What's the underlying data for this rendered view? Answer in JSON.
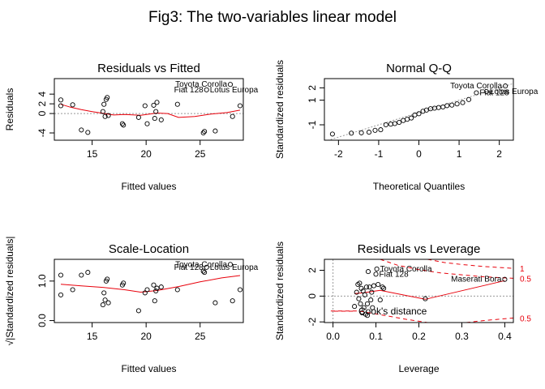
{
  "figure": {
    "title": "Fig3: The two-variables linear model"
  },
  "chart_data": [
    {
      "type": "scatter",
      "title": "Residuals vs Fitted",
      "xlabel": "Fitted values",
      "ylabel": "Residuals",
      "xlim": [
        11.5,
        29
      ],
      "ylim": [
        -5.5,
        7.2
      ],
      "xticks": [
        15,
        20,
        25
      ],
      "yticks": [
        -4,
        0,
        2,
        4
      ],
      "reference_line": 0,
      "points": [
        {
          "x": 12.1,
          "y": 2.8
        },
        {
          "x": 12.1,
          "y": 1.6
        },
        {
          "x": 13.2,
          "y": 1.8
        },
        {
          "x": 14.0,
          "y": -3.4
        },
        {
          "x": 14.6,
          "y": -3.9
        },
        {
          "x": 16.0,
          "y": 0.4
        },
        {
          "x": 16.1,
          "y": 1.9
        },
        {
          "x": 16.2,
          "y": -0.6
        },
        {
          "x": 16.3,
          "y": 2.9
        },
        {
          "x": 16.4,
          "y": 3.3
        },
        {
          "x": 16.5,
          "y": -0.4
        },
        {
          "x": 17.8,
          "y": -2.1
        },
        {
          "x": 17.9,
          "y": -2.4
        },
        {
          "x": 19.3,
          "y": -0.8
        },
        {
          "x": 19.9,
          "y": 1.6
        },
        {
          "x": 20.1,
          "y": -2.1
        },
        {
          "x": 20.7,
          "y": 1.7
        },
        {
          "x": 20.8,
          "y": -1.0
        },
        {
          "x": 20.9,
          "y": 0.4
        },
        {
          "x": 21.0,
          "y": 2.3
        },
        {
          "x": 21.4,
          "y": -1.3
        },
        {
          "x": 22.9,
          "y": 1.9
        },
        {
          "x": 25.3,
          "y": -4.0
        },
        {
          "x": 25.4,
          "y": -3.7
        },
        {
          "x": 25.6,
          "y": 4.9
        },
        {
          "x": 26.4,
          "y": -3.6
        },
        {
          "x": 27.8,
          "y": 6.0
        },
        {
          "x": 28.0,
          "y": -0.6
        },
        {
          "x": 28.7,
          "y": 1.6
        }
      ],
      "smoother": [
        {
          "x": 12.1,
          "y": 1.9
        },
        {
          "x": 13,
          "y": 1.3
        },
        {
          "x": 14,
          "y": 0.8
        },
        {
          "x": 15,
          "y": 0.4
        },
        {
          "x": 16,
          "y": 0.05
        },
        {
          "x": 17,
          "y": -0.3
        },
        {
          "x": 18,
          "y": -0.2
        },
        {
          "x": 19.5,
          "y": -0.35
        },
        {
          "x": 21,
          "y": 0.1
        },
        {
          "x": 22,
          "y": 0.0
        },
        {
          "x": 23,
          "y": -0.8
        },
        {
          "x": 24.5,
          "y": -0.6
        },
        {
          "x": 26,
          "y": -0.1
        },
        {
          "x": 27.5,
          "y": 0.2
        },
        {
          "x": 28.7,
          "y": 0.7
        }
      ],
      "labels": [
        {
          "text": "Toyota Corolla",
          "x": 27.8,
          "y": 6.0,
          "align": "end"
        },
        {
          "text": "Lotus Europa",
          "x": 25.6,
          "y": 4.9,
          "align": "start"
        },
        {
          "text": "Fiat 128",
          "x": 25.6,
          "y": 4.9,
          "align": "end"
        }
      ]
    },
    {
      "type": "scatter",
      "title": "Normal Q-Q",
      "xlabel": "Theoretical Quantiles",
      "ylabel": "Standardized residuals",
      "xlim": [
        -2.35,
        2.35
      ],
      "ylim": [
        -2.25,
        2.75
      ],
      "xticks": [
        -2,
        -1,
        0,
        1,
        2
      ],
      "yticks": [
        -1,
        1,
        2
      ],
      "reference_line": "diagonal",
      "points": [
        {
          "x": -2.15,
          "y": -1.75
        },
        {
          "x": -1.68,
          "y": -1.68
        },
        {
          "x": -1.43,
          "y": -1.65
        },
        {
          "x": -1.24,
          "y": -1.6
        },
        {
          "x": -1.09,
          "y": -1.45
        },
        {
          "x": -0.95,
          "y": -1.4
        },
        {
          "x": -0.82,
          "y": -1.0
        },
        {
          "x": -0.7,
          "y": -0.95
        },
        {
          "x": -0.6,
          "y": -0.9
        },
        {
          "x": -0.49,
          "y": -0.8
        },
        {
          "x": -0.39,
          "y": -0.65
        },
        {
          "x": -0.29,
          "y": -0.55
        },
        {
          "x": -0.19,
          "y": -0.45
        },
        {
          "x": -0.1,
          "y": -0.2
        },
        {
          "x": 0.0,
          "y": -0.1
        },
        {
          "x": 0.1,
          "y": 0.1
        },
        {
          "x": 0.19,
          "y": 0.2
        },
        {
          "x": 0.29,
          "y": 0.3
        },
        {
          "x": 0.39,
          "y": 0.35
        },
        {
          "x": 0.49,
          "y": 0.4
        },
        {
          "x": 0.6,
          "y": 0.45
        },
        {
          "x": 0.7,
          "y": 0.55
        },
        {
          "x": 0.82,
          "y": 0.6
        },
        {
          "x": 0.95,
          "y": 0.7
        },
        {
          "x": 1.09,
          "y": 0.8
        },
        {
          "x": 1.24,
          "y": 1.05
        },
        {
          "x": 1.43,
          "y": 1.6
        },
        {
          "x": 1.68,
          "y": 1.7
        },
        {
          "x": 2.15,
          "y": 2.15
        }
      ],
      "labels": [
        {
          "text": "Toyota Corolla",
          "x": 2.15,
          "y": 2.15,
          "align": "end"
        },
        {
          "text": "Lotus Europa",
          "x": 1.68,
          "y": 1.7,
          "align": "start"
        },
        {
          "text": "Fiat 128",
          "x": 1.43,
          "y": 1.6,
          "align": "start"
        }
      ]
    },
    {
      "type": "scatter",
      "title": "Scale-Location",
      "xlabel": "Fitted values",
      "ylabel": "√|Standardized residuals|",
      "xlim": [
        11.5,
        29
      ],
      "ylim": [
        -0.05,
        1.55
      ],
      "xticks": [
        15,
        20,
        25
      ],
      "yticks": [
        0.0,
        1.0
      ],
      "points": [
        {
          "x": 12.1,
          "y": 1.15
        },
        {
          "x": 12.1,
          "y": 0.65
        },
        {
          "x": 13.2,
          "y": 0.78
        },
        {
          "x": 14.0,
          "y": 1.15
        },
        {
          "x": 14.6,
          "y": 1.22
        },
        {
          "x": 16.0,
          "y": 0.4
        },
        {
          "x": 16.1,
          "y": 0.7
        },
        {
          "x": 16.2,
          "y": 0.52
        },
        {
          "x": 16.3,
          "y": 1.0
        },
        {
          "x": 16.4,
          "y": 1.05
        },
        {
          "x": 16.5,
          "y": 0.45
        },
        {
          "x": 17.8,
          "y": 0.9
        },
        {
          "x": 17.9,
          "y": 0.95
        },
        {
          "x": 19.3,
          "y": 0.25
        },
        {
          "x": 19.9,
          "y": 0.7
        },
        {
          "x": 20.1,
          "y": 0.78
        },
        {
          "x": 20.7,
          "y": 0.9
        },
        {
          "x": 20.8,
          "y": 0.5
        },
        {
          "x": 20.9,
          "y": 0.75
        },
        {
          "x": 21.0,
          "y": 0.82
        },
        {
          "x": 21.4,
          "y": 0.85
        },
        {
          "x": 22.9,
          "y": 0.78
        },
        {
          "x": 25.3,
          "y": 1.25
        },
        {
          "x": 25.4,
          "y": 1.22
        },
        {
          "x": 25.6,
          "y": 1.35
        },
        {
          "x": 26.4,
          "y": 0.45
        },
        {
          "x": 27.8,
          "y": 1.42
        },
        {
          "x": 28.0,
          "y": 0.5
        },
        {
          "x": 28.7,
          "y": 0.78
        }
      ],
      "smoother": [
        {
          "x": 12.1,
          "y": 0.92
        },
        {
          "x": 14,
          "y": 0.88
        },
        {
          "x": 16,
          "y": 0.84
        },
        {
          "x": 18,
          "y": 0.78
        },
        {
          "x": 19.5,
          "y": 0.72
        },
        {
          "x": 21,
          "y": 0.76
        },
        {
          "x": 23,
          "y": 0.86
        },
        {
          "x": 25,
          "y": 0.98
        },
        {
          "x": 27,
          "y": 1.08
        },
        {
          "x": 28.7,
          "y": 1.14
        }
      ],
      "labels": [
        {
          "text": "Toyota Corolla",
          "x": 27.8,
          "y": 1.42,
          "align": "end"
        },
        {
          "text": "Lotus Europa",
          "x": 25.6,
          "y": 1.35,
          "align": "start"
        },
        {
          "text": "Fiat 128",
          "x": 25.6,
          "y": 1.35,
          "align": "end"
        }
      ]
    },
    {
      "type": "scatter",
      "title": "Residuals vs Leverage",
      "xlabel": "Leverage",
      "ylabel": "Standardized residuals",
      "xlim": [
        -0.02,
        0.42
      ],
      "ylim": [
        -2.05,
        2.85
      ],
      "xticks": [
        0.0,
        0.1,
        0.2,
        0.3,
        0.4
      ],
      "yticks": [
        -2,
        0,
        2
      ],
      "reference_line": 0,
      "points": [
        {
          "x": 0.05,
          "y": -0.8
        },
        {
          "x": 0.055,
          "y": 0.3
        },
        {
          "x": 0.058,
          "y": 0.9
        },
        {
          "x": 0.06,
          "y": -0.2
        },
        {
          "x": 0.062,
          "y": 1.0
        },
        {
          "x": 0.064,
          "y": -0.6
        },
        {
          "x": 0.066,
          "y": 0.6
        },
        {
          "x": 0.068,
          "y": -1.3
        },
        {
          "x": 0.07,
          "y": 0.4
        },
        {
          "x": 0.072,
          "y": -0.9
        },
        {
          "x": 0.074,
          "y": 0.1
        },
        {
          "x": 0.076,
          "y": -1.4
        },
        {
          "x": 0.078,
          "y": 0.7
        },
        {
          "x": 0.08,
          "y": -1.5
        },
        {
          "x": 0.08,
          "y": -0.6
        },
        {
          "x": 0.082,
          "y": 1.9
        },
        {
          "x": 0.085,
          "y": 0.7
        },
        {
          "x": 0.088,
          "y": -0.3
        },
        {
          "x": 0.09,
          "y": 0.3
        },
        {
          "x": 0.092,
          "y": -0.9
        },
        {
          "x": 0.095,
          "y": 0.8
        },
        {
          "x": 0.1,
          "y": 1.7
        },
        {
          "x": 0.102,
          "y": 2.1
        },
        {
          "x": 0.105,
          "y": 0.9
        },
        {
          "x": 0.11,
          "y": -0.3
        },
        {
          "x": 0.115,
          "y": 0.7
        },
        {
          "x": 0.118,
          "y": 0.6
        },
        {
          "x": 0.215,
          "y": -0.2
        },
        {
          "x": 0.4,
          "y": 1.3
        }
      ],
      "smoother": [
        {
          "x": 0.05,
          "y": 0.2
        },
        {
          "x": 0.07,
          "y": 0.25
        },
        {
          "x": 0.09,
          "y": 0.35
        },
        {
          "x": 0.11,
          "y": 0.45
        },
        {
          "x": 0.215,
          "y": -0.25
        },
        {
          "x": 0.4,
          "y": 1.2
        }
      ],
      "cooks_distance": {
        "contours": [
          {
            "label": "1",
            "points": [
              {
                "x": 0.22,
                "y": 2.85
              },
              {
                "x": 0.26,
                "y": 2.6
              },
              {
                "x": 0.3,
                "y": 2.45
              },
              {
                "x": 0.35,
                "y": 2.3
              },
              {
                "x": 0.42,
                "y": 2.15
              }
            ]
          },
          {
            "label": "0.5",
            "points": [
              {
                "x": 0.11,
                "y": 2.85
              },
              {
                "x": 0.15,
                "y": 2.4
              },
              {
                "x": 0.2,
                "y": 2.05
              },
              {
                "x": 0.25,
                "y": 1.8
              },
              {
                "x": 0.3,
                "y": 1.65
              },
              {
                "x": 0.35,
                "y": 1.5
              },
              {
                "x": 0.42,
                "y": 1.38
              }
            ]
          },
          {
            "label": "0.5",
            "points": [
              {
                "x": -0.005,
                "y": -1.15
              },
              {
                "x": 0.06,
                "y": -1.15
              },
              {
                "x": 0.12,
                "y": -1.5
              },
              {
                "x": 0.17,
                "y": -1.8
              },
              {
                "x": 0.22,
                "y": -2.05
              }
            ]
          },
          {
            "label": "",
            "points": [
              {
                "x": 0.31,
                "y": -2.05
              },
              {
                "x": 0.35,
                "y": -1.9
              },
              {
                "x": 0.42,
                "y": -1.7
              }
            ]
          }
        ],
        "contour_labels": [
          {
            "text": "1",
            "x": 0.42,
            "y": 2.15
          },
          {
            "text": "0.5",
            "x": 0.42,
            "y": 1.38
          },
          {
            "text": "0.5",
            "x": 0.42,
            "y": -1.7
          }
        ],
        "legend": "Cook's distance",
        "legend_position": "bottom-left"
      },
      "labels": [
        {
          "text": "Toyota Corolla",
          "x": 0.102,
          "y": 2.1,
          "align": "start"
        },
        {
          "text": "Fiat 128",
          "x": 0.1,
          "y": 1.7,
          "align": "start"
        },
        {
          "text": "Maserati Bora",
          "x": 0.4,
          "y": 1.3,
          "align": "end"
        }
      ]
    }
  ]
}
